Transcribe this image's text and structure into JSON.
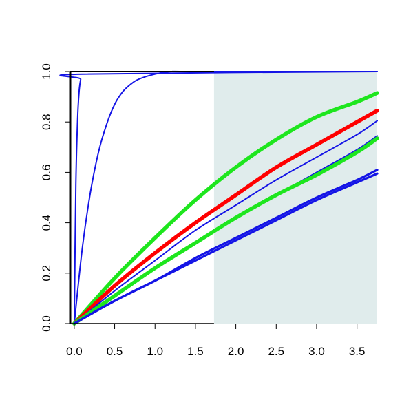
{
  "chart_data": {
    "type": "line",
    "title": "",
    "xlabel": "",
    "ylabel": "",
    "xlim": [
      -0.05,
      3.75
    ],
    "ylim": [
      0,
      1
    ],
    "grid": false,
    "x_ticks": [
      0.0,
      0.5,
      1.0,
      1.5,
      2.0,
      2.5,
      3.0,
      3.5
    ],
    "x_tick_labels": [
      "0.0",
      "0.5",
      "1.0",
      "1.5",
      "2.0",
      "2.5",
      "3.0",
      "3.5"
    ],
    "y_ticks": [
      0.0,
      0.2,
      0.4,
      0.6,
      0.8,
      1.0
    ],
    "y_tick_labels": [
      "0.0",
      "0.2",
      "0.4",
      "0.6",
      "0.8",
      "1.0"
    ],
    "shaded_region": {
      "x_from": 1.73,
      "x_to": 3.75,
      "color": "#e0ecec"
    },
    "colors": {
      "blue": "#1414e6",
      "red": "#ff0000",
      "green": "#1ee61e"
    },
    "series": [
      {
        "color": "#1414e6",
        "weight": "thin",
        "x": [
          0,
          0.02,
          0.04,
          0.06,
          0.08,
          0.1,
          3.75
        ],
        "y": [
          0,
          0.55,
          0.8,
          0.92,
          0.97,
          0.99,
          1.0
        ]
      },
      {
        "color": "#1414e6",
        "weight": "thin",
        "x": [
          0,
          0.1,
          0.2,
          0.3,
          0.4,
          0.5,
          0.6,
          0.7,
          0.8,
          1.0,
          1.2,
          1.5,
          3.75
        ],
        "y": [
          0,
          0.3,
          0.52,
          0.68,
          0.79,
          0.87,
          0.92,
          0.95,
          0.97,
          0.99,
          1.0,
          1.0,
          1.0
        ]
      },
      {
        "color": "#1ee61e",
        "weight": "thick",
        "x": [
          0,
          0.5,
          1.0,
          1.5,
          2.0,
          2.5,
          3.0,
          3.5,
          3.75
        ],
        "y": [
          0,
          0.18,
          0.34,
          0.49,
          0.62,
          0.73,
          0.82,
          0.88,
          0.915
        ]
      },
      {
        "color": "#ff0000",
        "weight": "thick",
        "x": [
          0,
          0.5,
          1.0,
          1.5,
          2.0,
          2.5,
          3.0,
          3.5,
          3.75
        ],
        "y": [
          0,
          0.15,
          0.28,
          0.4,
          0.51,
          0.62,
          0.71,
          0.8,
          0.845
        ]
      },
      {
        "color": "#1414e6",
        "weight": "thin",
        "x": [
          0,
          0.5,
          1.0,
          1.5,
          2.0,
          2.5,
          3.0,
          3.5,
          3.75
        ],
        "y": [
          0,
          0.13,
          0.25,
          0.37,
          0.47,
          0.57,
          0.66,
          0.75,
          0.805
        ]
      },
      {
        "color": "#1414e6",
        "weight": "thin",
        "x": [
          0,
          0.5,
          1.0,
          1.5,
          2.0,
          2.5,
          3.0,
          3.5,
          3.75
        ],
        "y": [
          0,
          0.11,
          0.22,
          0.32,
          0.42,
          0.51,
          0.6,
          0.69,
          0.745
        ]
      },
      {
        "color": "#1ee61e",
        "weight": "thick",
        "x": [
          0,
          0.5,
          1.0,
          1.5,
          2.0,
          2.5,
          3.0,
          3.5,
          3.75
        ],
        "y": [
          0,
          0.11,
          0.22,
          0.32,
          0.42,
          0.51,
          0.59,
          0.68,
          0.735
        ]
      },
      {
        "color": "#1414e6",
        "weight": "medium",
        "x": [
          0,
          0.5,
          1.0,
          1.5,
          2.0,
          2.5,
          3.0,
          3.5,
          3.75
        ],
        "y": [
          0,
          0.09,
          0.17,
          0.26,
          0.34,
          0.42,
          0.5,
          0.57,
          0.61
        ]
      },
      {
        "color": "#1414e6",
        "weight": "medium",
        "x": [
          0,
          0.5,
          1.0,
          1.5,
          2.0,
          2.5,
          3.0,
          3.5,
          3.75
        ],
        "y": [
          0,
          0.09,
          0.17,
          0.25,
          0.33,
          0.41,
          0.49,
          0.56,
          0.595
        ]
      }
    ]
  }
}
